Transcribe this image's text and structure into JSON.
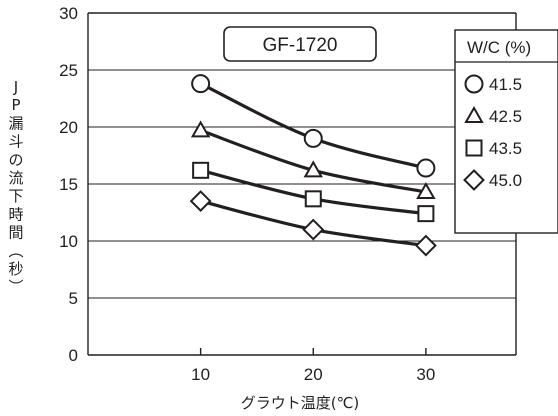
{
  "chart_data": {
    "type": "line",
    "title": "GF-1720",
    "xlabel": "グラウト温度(℃)",
    "ylabel": "JP漏斗の流下時間(秒)",
    "x": [
      10,
      20,
      30
    ],
    "xlim": [
      0,
      38
    ],
    "ylim": [
      0,
      30
    ],
    "yticks": [
      0,
      5,
      10,
      15,
      20,
      25,
      30
    ],
    "xticks": [
      10,
      20,
      30
    ],
    "grid": "horizontal",
    "legend_title": "W/C (%)",
    "legend_position": "top-right",
    "series": [
      {
        "name": "41.5",
        "marker": "circle",
        "values": [
          23.8,
          19.0,
          16.4
        ]
      },
      {
        "name": "42.5",
        "marker": "triangle",
        "values": [
          19.7,
          16.2,
          14.3
        ]
      },
      {
        "name": "43.5",
        "marker": "square",
        "values": [
          16.2,
          13.7,
          12.4
        ]
      },
      {
        "name": "45.0",
        "marker": "diamond",
        "values": [
          13.5,
          11.0,
          9.6
        ]
      }
    ]
  }
}
